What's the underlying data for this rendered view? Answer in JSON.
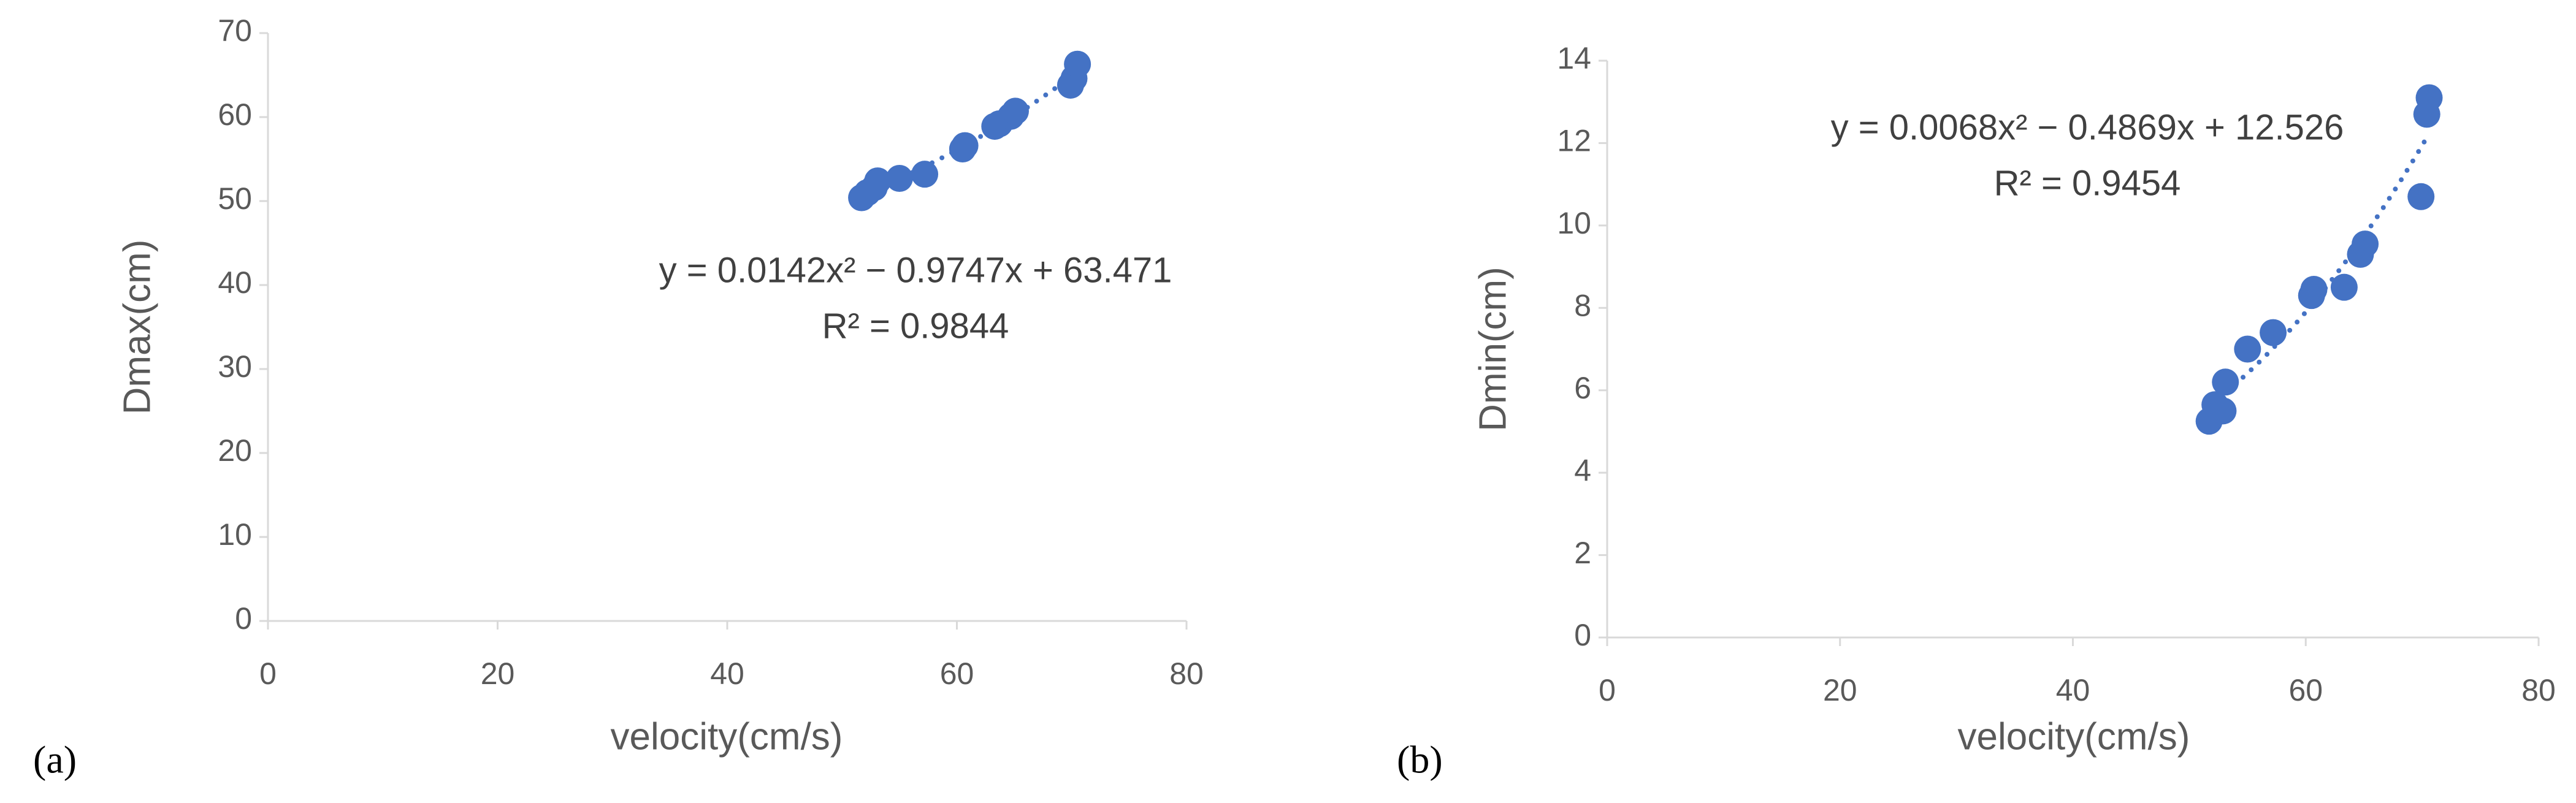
{
  "chart_data": [
    {
      "type": "scatter",
      "panel_label": "(a)",
      "x_label": "velocity(cm/s)",
      "y_label": "Dmax(cm)",
      "equation": "y = 0.0142x² − 0.9747x + 63.471",
      "r_squared": "R² = 0.9844",
      "trendline": "poly2",
      "color": "#4472c4",
      "x": [
        51.7,
        52.2,
        52.8,
        53.1,
        55.0,
        57.2,
        60.5,
        60.7,
        63.3,
        63.7,
        64.7,
        65.1,
        69.9,
        70.2,
        70.5
      ],
      "values": [
        50.4,
        51.0,
        51.6,
        52.4,
        52.7,
        53.2,
        56.2,
        56.6,
        58.9,
        59.2,
        60.1,
        60.7,
        63.8,
        64.6,
        66.3
      ],
      "xlim": [
        0,
        80
      ],
      "xticks": [
        0,
        20,
        40,
        60,
        80
      ],
      "ylim": [
        0,
        70
      ],
      "yticks": [
        0,
        10,
        20,
        30,
        40,
        50,
        60,
        70
      ]
    },
    {
      "type": "scatter",
      "panel_label": "(b)",
      "x_label": "velocity(cm/s)",
      "y_label": "Dmin(cm)",
      "equation": "y = 0.0068x² − 0.4869x + 12.526",
      "r_squared": "R² = 0.9454",
      "trendline": "poly2",
      "color": "#4472c4",
      "x": [
        51.7,
        52.2,
        52.9,
        53.1,
        55.0,
        57.2,
        60.5,
        60.7,
        63.3,
        64.7,
        65.1,
        69.9,
        70.4,
        70.6
      ],
      "values": [
        5.25,
        5.65,
        5.5,
        6.2,
        7.0,
        7.4,
        8.3,
        8.45,
        8.5,
        9.3,
        9.55,
        10.7,
        12.7,
        13.1
      ],
      "xlim": [
        0,
        80
      ],
      "xticks": [
        0,
        20,
        40,
        60,
        80
      ],
      "ylim": [
        0,
        14
      ],
      "yticks": [
        0,
        2,
        4,
        6,
        8,
        10,
        12,
        14
      ]
    }
  ]
}
